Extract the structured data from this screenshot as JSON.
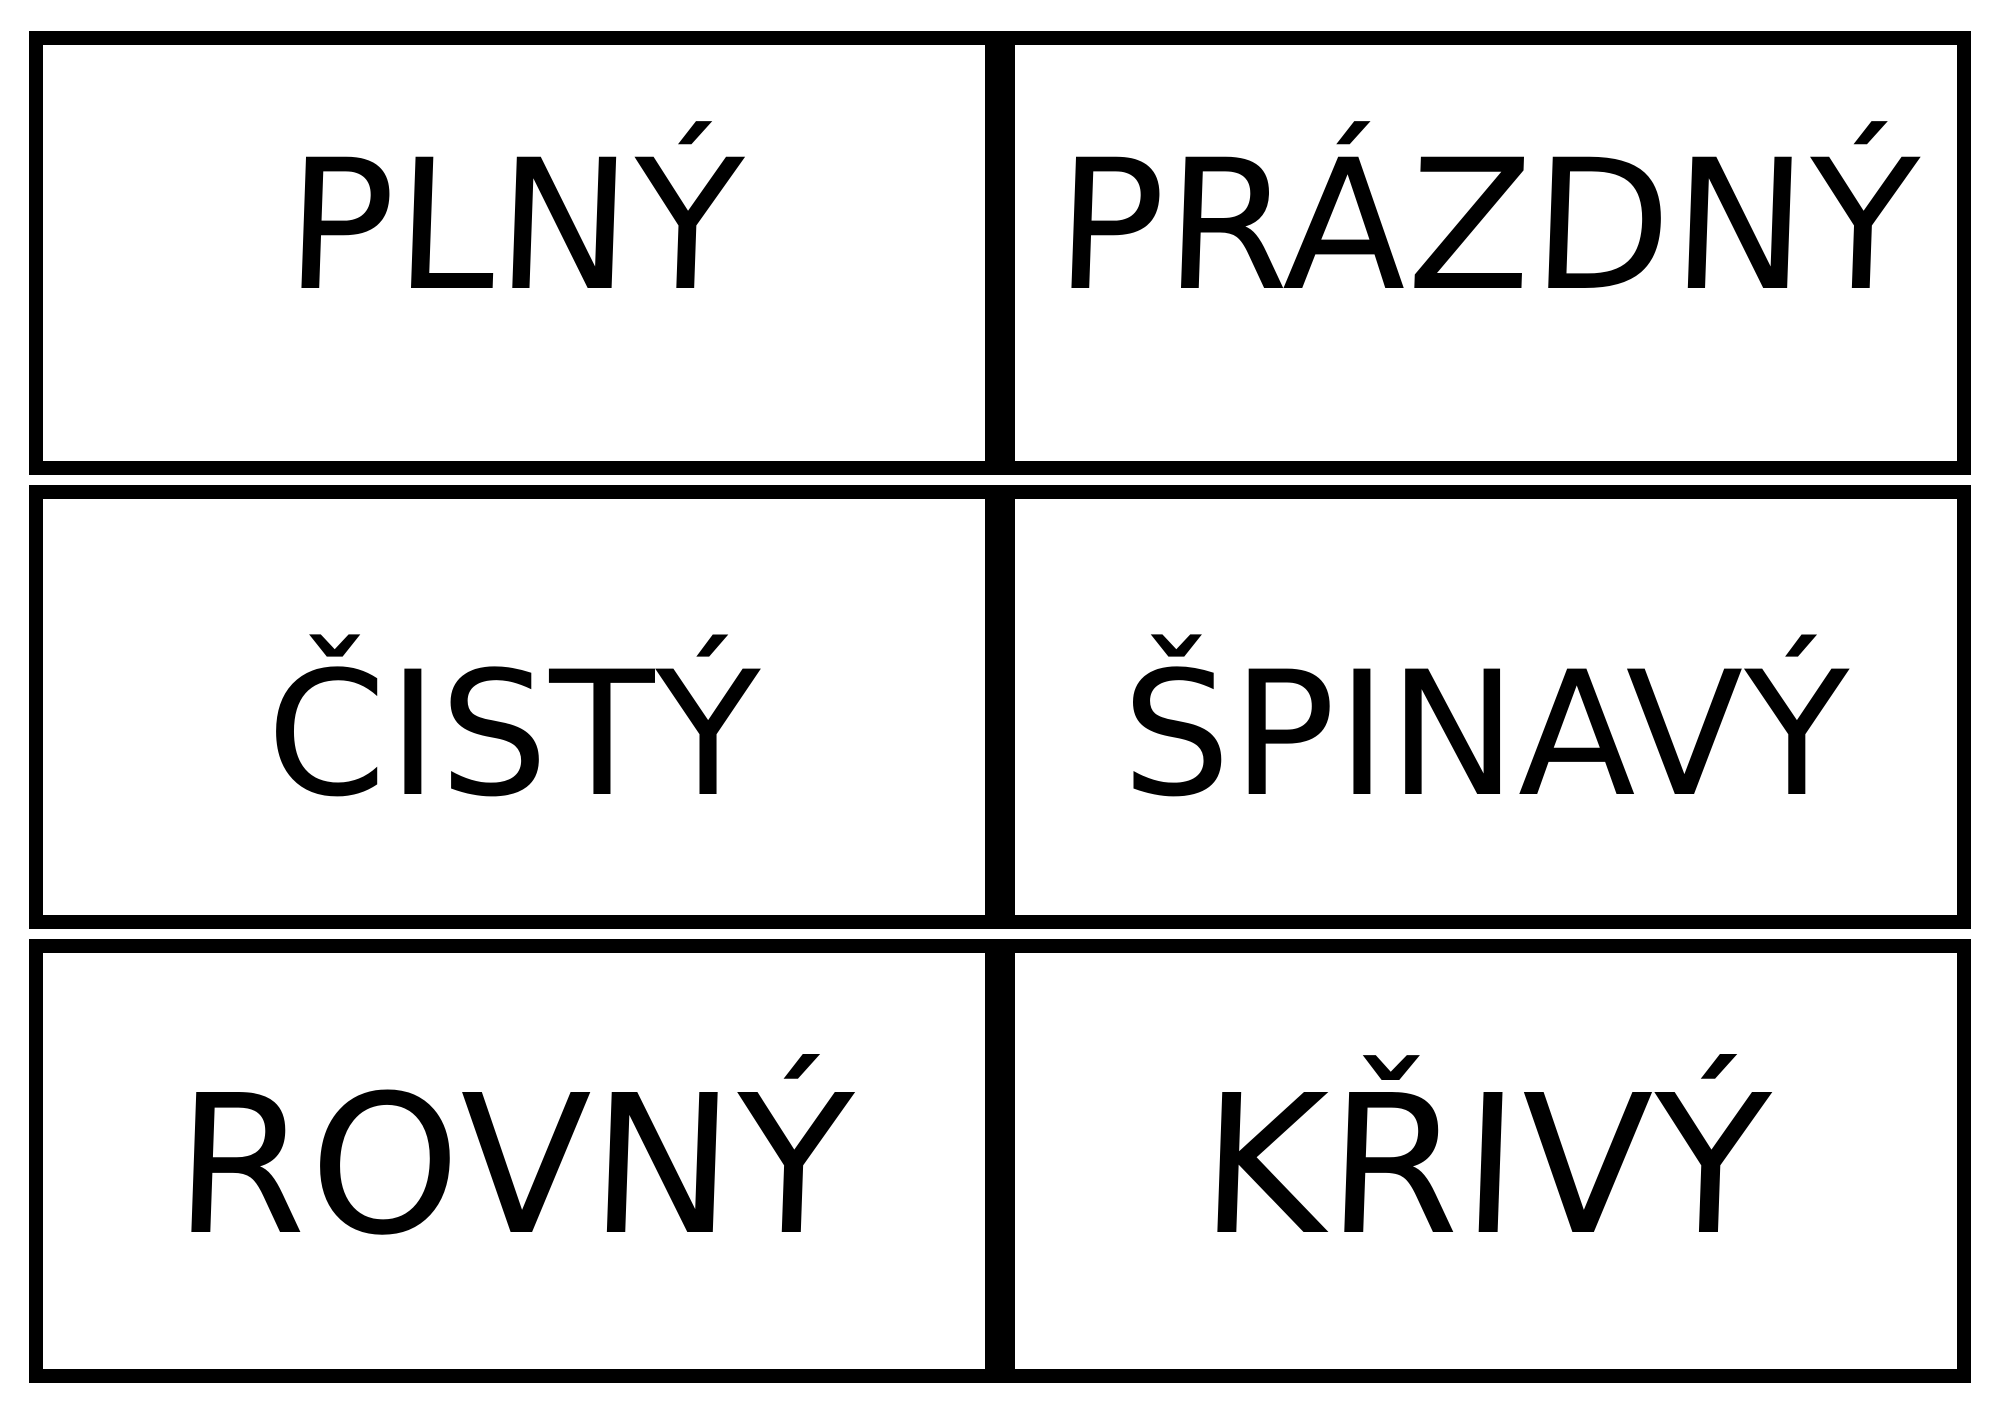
{
  "page": {
    "background_color": "#ffffff",
    "ink_color": "#000000",
    "description_language": "cs"
  },
  "grid": {
    "rows": [
      {
        "left": "PLNÝ",
        "right": "PRÁZDNÝ"
      },
      {
        "left": "ČISTÝ",
        "right": "ŠPINAVÝ"
      },
      {
        "left": "ROVNÝ",
        "right": "KŘIVÝ"
      }
    ]
  }
}
